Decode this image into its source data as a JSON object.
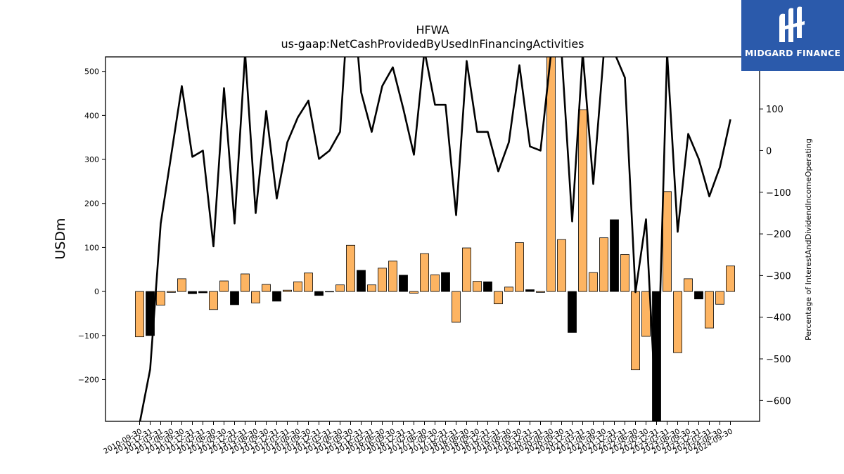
{
  "logo": {
    "text": "MIDGARD FINANCE"
  },
  "chart_data": {
    "type": "bar",
    "title": "HFWA",
    "subtitle": "us-gaap:NetCashProvidedByUsedInFinancingActivities",
    "ylabel": "USDm",
    "y2label": "Percentage of InterestAndDividendIncomeOperating",
    "ylim": [
      -295,
      533
    ],
    "y2lim": [
      -650,
      225
    ],
    "yticks": [
      -200,
      -100,
      0,
      100,
      200,
      300,
      400,
      500
    ],
    "y2ticks": [
      -600,
      -500,
      -400,
      -300,
      -200,
      -100,
      0,
      100
    ],
    "grid": false,
    "colors": {
      "positive_bar": "#fdb462",
      "negative_bar": "#000000",
      "line": "#000000"
    },
    "categories": [
      "2010-09-30",
      "2010-12-31",
      "2011-03-31",
      "2011-06-30",
      "2011-09-30",
      "2011-12-31",
      "2012-03-31",
      "2012-06-30",
      "2012-09-30",
      "2012-12-31",
      "2013-03-31",
      "2013-06-30",
      "2013-09-30",
      "2013-12-31",
      "2014-03-31",
      "2014-06-30",
      "2014-09-30",
      "2014-12-31",
      "2015-03-31",
      "2015-06-30",
      "2015-09-30",
      "2015-12-31",
      "2016-03-31",
      "2016-06-30",
      "2016-09-30",
      "2016-12-31",
      "2017-03-31",
      "2017-06-30",
      "2017-09-30",
      "2017-12-31",
      "2018-03-31",
      "2018-06-30",
      "2018-09-30",
      "2018-12-31",
      "2019-03-31",
      "2019-06-30",
      "2019-09-30",
      "2019-12-31",
      "2020-03-31",
      "2020-06-30",
      "2020-09-30",
      "2020-12-31",
      "2021-03-31",
      "2021-06-30",
      "2021-09-30",
      "2021-12-31",
      "2022-03-31",
      "2022-06-30",
      "2022-09-30",
      "2022-12-31",
      "2023-03-31",
      "2023-06-30",
      "2023-09-30",
      "2023-12-31",
      "2024-03-31",
      "2024-06-30",
      "2024-09-30"
    ],
    "values": [
      -103,
      -100,
      -31,
      -2,
      29,
      -5,
      -3,
      -41,
      24,
      -30,
      40,
      -26,
      16,
      -22,
      3,
      22,
      42,
      -9,
      -1,
      15,
      105,
      48,
      15,
      53,
      69,
      37,
      -4,
      86,
      38,
      43,
      -70,
      99,
      23,
      22,
      -28,
      10,
      111,
      4,
      -2,
      533,
      118,
      -93,
      413,
      43,
      122,
      163,
      84,
      -178,
      -102,
      -295,
      227,
      -139,
      29,
      -17,
      -83,
      -29,
      58
    ],
    "bar_color_group": [
      "positive",
      "negative",
      "positive",
      "positive",
      "positive",
      "negative",
      "negative",
      "positive",
      "positive",
      "negative",
      "positive",
      "positive",
      "positive",
      "negative",
      "positive",
      "positive",
      "positive",
      "negative",
      "positive",
      "positive",
      "positive",
      "negative",
      "positive",
      "positive",
      "positive",
      "negative",
      "positive",
      "positive",
      "positive",
      "negative",
      "positive",
      "positive",
      "positive",
      "negative",
      "positive",
      "positive",
      "positive",
      "negative",
      "positive",
      "positive",
      "positive",
      "negative",
      "positive",
      "positive",
      "positive",
      "negative",
      "positive",
      "positive",
      "positive",
      "negative",
      "positive",
      "positive",
      "positive",
      "negative",
      "positive",
      "positive",
      "positive"
    ],
    "series": [
      {
        "type": "line",
        "axis": "right",
        "values": [
          -655,
          -525,
          -175,
          -10,
          155,
          -15,
          0,
          -230,
          150,
          -175,
          235,
          -150,
          95,
          -115,
          20,
          80,
          120,
          -20,
          0,
          45,
          440,
          140,
          45,
          155,
          200,
          100,
          -10,
          240,
          110,
          110,
          -155,
          215,
          45,
          45,
          -50,
          20,
          205,
          10,
          0,
          235,
          235,
          -170,
          235,
          -80,
          235,
          235,
          175,
          -340,
          -165,
          -655,
          235,
          -195,
          40,
          -20,
          -110,
          -40,
          75
        ]
      }
    ]
  }
}
